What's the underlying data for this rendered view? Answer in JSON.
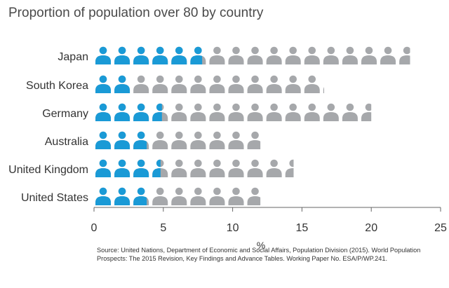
{
  "title": "Proportion of population over 80 by country",
  "source": "Source: United Nations, Department of Economic and Social Affairs, Population Division (2015). World Population Prospects: The 2015 Revision, Key Findings and Advance Tables. Working Paper No. ESA/P/WP.241.",
  "chart_data": {
    "type": "bar",
    "title": "Proportion of population over 80 by country",
    "xlabel": "%",
    "ylabel": "",
    "xlim": [
      0,
      25
    ],
    "x_ticks": [
      0,
      5,
      10,
      15,
      20,
      25
    ],
    "categories": [
      "Japan",
      "South Korea",
      "Germany",
      "Australia",
      "United Kingdom",
      "United States"
    ],
    "values": [
      22.8,
      16.6,
      20.0,
      12.0,
      14.4,
      12.0
    ],
    "highlighted_values": [
      7.8,
      2.8,
      4.9,
      3.8,
      4.8,
      3.8
    ],
    "units_per_icon": 1.37,
    "grid": false,
    "colors": {
      "highlight": "#1a9ad6",
      "base": "#a6a8ab",
      "axis": "#666666"
    }
  }
}
